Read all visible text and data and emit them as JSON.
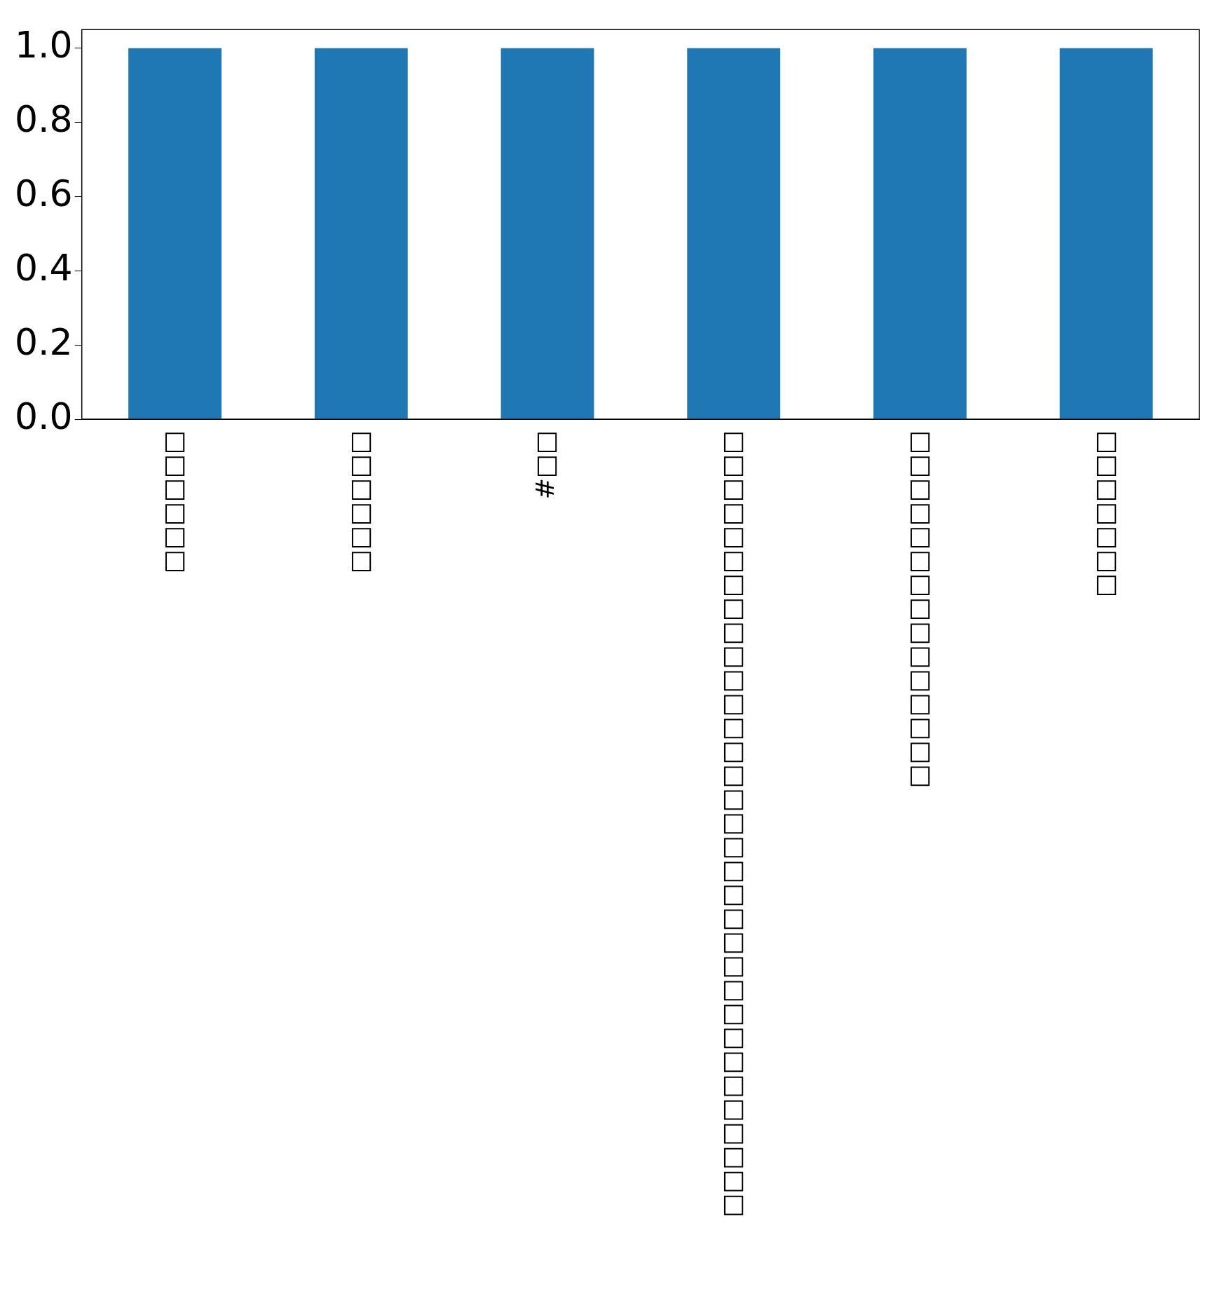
{
  "chart_data": {
    "type": "bar",
    "categories": [
      "□□□□□□",
      "□□□□□□",
      "#□□",
      "□□□□□□□□□□□□□□□□□□□□□□□□□□□□□□□□□",
      "□□□□□□□□□□□□□□□",
      "□□□□□□□"
    ],
    "values": [
      1,
      1,
      1,
      1,
      1,
      1
    ],
    "color": "#1f77b4",
    "ylim": [
      0,
      1.05
    ],
    "yticks": [
      {
        "value": 0,
        "label": "0.0"
      },
      {
        "value": 0.2,
        "label": "0.2"
      },
      {
        "value": 0.4,
        "label": "0.4"
      },
      {
        "value": 0.6,
        "label": "0.6"
      },
      {
        "value": 0.8,
        "label": "0.8"
      },
      {
        "value": 1,
        "label": "1.0"
      }
    ],
    "grid": false,
    "legend": false
  }
}
